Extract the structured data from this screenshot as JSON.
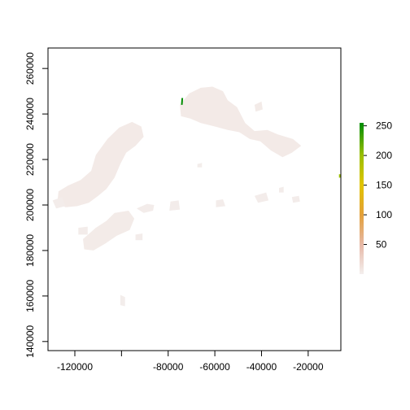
{
  "chart_data": {
    "type": "heatmap",
    "title": "",
    "xlabel": "",
    "ylabel": "",
    "xlim": [
      -131500,
      -6000
    ],
    "ylim": [
      136000,
      269000
    ],
    "x_ticks": [
      {
        "value": -120000,
        "label": "-120000"
      },
      {
        "value": -100000,
        "label": ""
      },
      {
        "value": -80000,
        "label": "-80000"
      },
      {
        "value": -60000,
        "label": "-60000"
      },
      {
        "value": -40000,
        "label": "-40000"
      },
      {
        "value": -20000,
        "label": "-20000"
      }
    ],
    "y_ticks": [
      {
        "value": 140000,
        "label": "140000"
      },
      {
        "value": 160000,
        "label": "160000"
      },
      {
        "value": 180000,
        "label": "180000"
      },
      {
        "value": 200000,
        "label": "200000"
      },
      {
        "value": 220000,
        "label": "220000"
      },
      {
        "value": 240000,
        "label": "240000"
      },
      {
        "value": 260000,
        "label": "260000"
      }
    ],
    "legend": {
      "placement": "right",
      "min": 0,
      "max": 255,
      "ticks": [
        {
          "value": 50,
          "label": "50"
        },
        {
          "value": 100,
          "label": "100"
        },
        {
          "value": 150,
          "label": "150"
        },
        {
          "value": 200,
          "label": "200"
        },
        {
          "value": 250,
          "label": "250"
        }
      ],
      "color_stops": [
        {
          "value": 0,
          "color": "#f4efee"
        },
        {
          "value": 50,
          "color": "#e6b8a6"
        },
        {
          "value": 100,
          "color": "#e3a03a"
        },
        {
          "value": 150,
          "color": "#e2c400"
        },
        {
          "value": 200,
          "color": "#9bbf00"
        },
        {
          "value": 255,
          "color": "#008c00"
        }
      ]
    },
    "regions": [
      {
        "value": 5,
        "points": [
          [
            -75000,
            244000
          ],
          [
            -71000,
            249000
          ],
          [
            -66000,
            251500
          ],
          [
            -61000,
            252000
          ],
          [
            -56500,
            250000
          ],
          [
            -54500,
            246000
          ],
          [
            -50500,
            243000
          ],
          [
            -47000,
            236000
          ],
          [
            -43000,
            232500
          ],
          [
            -37500,
            233000
          ],
          [
            -33000,
            231000
          ],
          [
            -26500,
            229000
          ],
          [
            -23000,
            226000
          ],
          [
            -27000,
            223000
          ],
          [
            -31000,
            221000
          ],
          [
            -36000,
            224000
          ],
          [
            -40500,
            228000
          ],
          [
            -45000,
            229000
          ],
          [
            -49500,
            232000
          ],
          [
            -54500,
            233000
          ],
          [
            -60000,
            234500
          ],
          [
            -66000,
            236000
          ],
          [
            -70500,
            238000
          ],
          [
            -74500,
            239000
          ]
        ]
      },
      {
        "value": 4,
        "points": [
          [
            -43000,
            244000
          ],
          [
            -40000,
            245500
          ],
          [
            -39500,
            242000
          ],
          [
            -42500,
            241000
          ]
        ]
      },
      {
        "value": 5,
        "points": [
          [
            -111000,
            222000
          ],
          [
            -106000,
            229000
          ],
          [
            -101000,
            234000
          ],
          [
            -95500,
            236500
          ],
          [
            -91500,
            234500
          ],
          [
            -90500,
            230000
          ],
          [
            -94000,
            226000
          ],
          [
            -98000,
            223000
          ],
          [
            -100500,
            218000
          ],
          [
            -103000,
            212000
          ],
          [
            -106500,
            207000
          ],
          [
            -110000,
            204000
          ],
          [
            -114000,
            201000
          ],
          [
            -119000,
            199500
          ],
          [
            -124000,
            199000
          ],
          [
            -127500,
            201000
          ],
          [
            -127000,
            206000
          ],
          [
            -123000,
            208500
          ],
          [
            -117500,
            211000
          ],
          [
            -113000,
            215000
          ]
        ]
      },
      {
        "value": 4,
        "points": [
          [
            -103000,
            196500
          ],
          [
            -97000,
            197500
          ],
          [
            -94500,
            194000
          ],
          [
            -96500,
            189000
          ],
          [
            -102000,
            186500
          ],
          [
            -107000,
            183000
          ],
          [
            -112000,
            180000
          ],
          [
            -116000,
            180500
          ],
          [
            -116500,
            185000
          ],
          [
            -111000,
            190000
          ],
          [
            -106500,
            193000
          ]
        ]
      },
      {
        "value": 3,
        "points": [
          [
            -129500,
            202000
          ],
          [
            -125500,
            203500
          ],
          [
            -124000,
            199500
          ],
          [
            -128000,
            198500
          ]
        ]
      },
      {
        "value": 3,
        "points": [
          [
            -118500,
            190000
          ],
          [
            -114500,
            190500
          ],
          [
            -114500,
            187000
          ],
          [
            -118500,
            187000
          ]
        ]
      },
      {
        "value": 3,
        "points": [
          [
            -93500,
            198500
          ],
          [
            -89000,
            200500
          ],
          [
            -86000,
            200000
          ],
          [
            -86500,
            197500
          ],
          [
            -90500,
            196500
          ]
        ]
      },
      {
        "value": 3,
        "points": [
          [
            -94000,
            187000
          ],
          [
            -91000,
            187500
          ],
          [
            -91000,
            184500
          ],
          [
            -94000,
            184500
          ]
        ]
      },
      {
        "value": 3,
        "points": [
          [
            -79000,
            201500
          ],
          [
            -75500,
            202000
          ],
          [
            -75000,
            198000
          ],
          [
            -79500,
            197500
          ]
        ]
      },
      {
        "value": 3,
        "points": [
          [
            -59500,
            202000
          ],
          [
            -56500,
            202500
          ],
          [
            -55500,
            199500
          ],
          [
            -59500,
            199000
          ]
        ]
      },
      {
        "value": 3,
        "points": [
          [
            -43000,
            204000
          ],
          [
            -38000,
            205500
          ],
          [
            -37000,
            202000
          ],
          [
            -41500,
            201000
          ]
        ]
      },
      {
        "value": 3,
        "points": [
          [
            -32500,
            207500
          ],
          [
            -30500,
            208000
          ],
          [
            -30500,
            205500
          ],
          [
            -32500,
            205500
          ]
        ]
      },
      {
        "value": 3,
        "points": [
          [
            -27000,
            203500
          ],
          [
            -24000,
            204000
          ],
          [
            -23500,
            201500
          ],
          [
            -26500,
            201000
          ]
        ]
      },
      {
        "value": 2,
        "points": [
          [
            -67500,
            218000
          ],
          [
            -65500,
            218500
          ],
          [
            -65500,
            216500
          ],
          [
            -67500,
            216500
          ]
        ]
      },
      {
        "value": 2,
        "points": [
          [
            -100500,
            160500
          ],
          [
            -98500,
            159500
          ],
          [
            -98500,
            155500
          ],
          [
            -100500,
            156000
          ]
        ]
      },
      {
        "value": 255,
        "points": [
          [
            -74500,
            244000
          ],
          [
            -73800,
            244000
          ],
          [
            -73600,
            247000
          ],
          [
            -74300,
            247000
          ]
        ]
      },
      {
        "value": 200,
        "points": [
          [
            -6800,
            213500
          ],
          [
            -6000,
            213500
          ],
          [
            -6000,
            212000
          ],
          [
            -6800,
            212000
          ]
        ]
      }
    ]
  }
}
